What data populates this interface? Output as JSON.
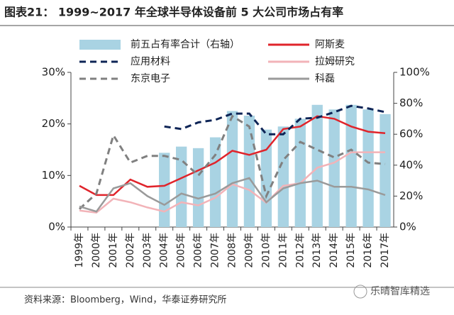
{
  "chart_data": {
    "type": "combo",
    "title": "图表21：  1999~2017 年全球半导体设备前 5 大公司市场占有率",
    "source": "资料来源：Bloomberg，Wind，华泰证券研究所",
    "watermark": "乐晴智库精选",
    "categories": [
      "1999年",
      "2000年",
      "2001年",
      "2002年",
      "2003年",
      "2004年",
      "2005年",
      "2006年",
      "2007年",
      "2008年",
      "2009年",
      "2010年",
      "2011年",
      "2012年",
      "2013年",
      "2014年",
      "2015年",
      "2016年",
      "2017年"
    ],
    "ylim": [
      0,
      30
    ],
    "yticks": [
      {
        "value": 0,
        "label": "0%"
      },
      {
        "value": 10,
        "label": "10%"
      },
      {
        "value": 20,
        "label": "20%"
      },
      {
        "value": 30,
        "label": "30%"
      }
    ],
    "y2lim": [
      0,
      100
    ],
    "y2ticks": [
      {
        "value": 0,
        "label": "0%"
      },
      {
        "value": 20,
        "label": "20%"
      },
      {
        "value": 40,
        "label": "40%"
      },
      {
        "value": 60,
        "label": "60%"
      },
      {
        "value": 80,
        "label": "80%"
      },
      {
        "value": 100,
        "label": "100%"
      }
    ],
    "series": [
      {
        "name": "前五占有率合计（右轴）",
        "type": "bar",
        "axis": "y2",
        "color": "#a9d3e3",
        "values": [
          null,
          null,
          null,
          null,
          null,
          48,
          52,
          51,
          58,
          75,
          72,
          63,
          65,
          70,
          79,
          76,
          79,
          76,
          73
        ]
      },
      {
        "name": "阿斯麦",
        "type": "line",
        "color": "#e0242b",
        "dash": false,
        "values": [
          8,
          6.2,
          6.2,
          9.2,
          7.8,
          8,
          9.5,
          11,
          12.5,
          14.8,
          14,
          15,
          19,
          19.5,
          21.5,
          21,
          19.5,
          18.5,
          18.2
        ]
      },
      {
        "name": "应用材料",
        "type": "line",
        "color": "#0d2456",
        "dash": true,
        "values": [
          null,
          null,
          null,
          null,
          null,
          19.5,
          19,
          20.3,
          20.8,
          22,
          22,
          18,
          18,
          21,
          21.2,
          22.3,
          23.5,
          23,
          22.3
        ]
      },
      {
        "name": "拉姆研究",
        "type": "line",
        "color": "#f2b3b8",
        "dash": false,
        "values": [
          3.2,
          2.8,
          5.5,
          4.8,
          3.8,
          3,
          4.8,
          4.2,
          5.7,
          8.3,
          7.2,
          4.7,
          8,
          8.5,
          11.5,
          12.5,
          14.5,
          14.5,
          14.5
        ]
      },
      {
        "name": "东京电子",
        "type": "line",
        "color": "#808080",
        "dash": true,
        "values": [
          3.5,
          6.5,
          17.8,
          12.5,
          13.8,
          13.8,
          13,
          10,
          14,
          21.5,
          19.5,
          6,
          13,
          16.5,
          15,
          13.5,
          15,
          12.5,
          12.2
        ]
      },
      {
        "name": "科磊",
        "type": "line",
        "color": "#9a9a9a",
        "dash": false,
        "values": [
          4,
          3,
          7.5,
          8.5,
          6,
          4.3,
          6.5,
          5.5,
          6.5,
          8.5,
          9.5,
          4.8,
          7.5,
          8.5,
          9,
          7.8,
          7.8,
          7.3,
          6.2
        ]
      }
    ]
  }
}
